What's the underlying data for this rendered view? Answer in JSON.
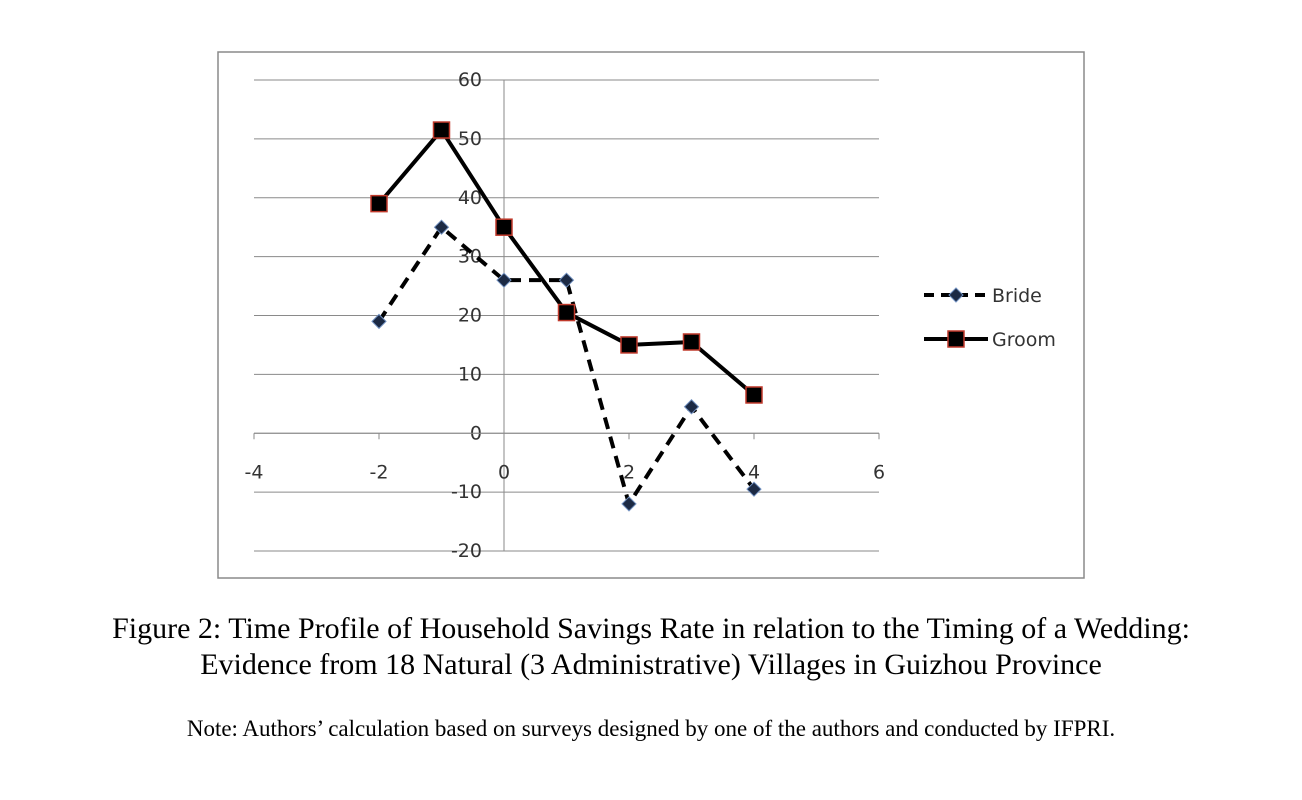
{
  "chart_data": {
    "type": "line",
    "x_ticks": [
      -4,
      -2,
      0,
      2,
      4,
      6
    ],
    "y_ticks": [
      -20,
      -10,
      0,
      10,
      20,
      30,
      40,
      50,
      60
    ],
    "xlim": [
      -4,
      6
    ],
    "ylim": [
      -20,
      60
    ],
    "grid": "horizontal",
    "legend_position": "right",
    "series": [
      {
        "name": "Bride",
        "style": "dashed",
        "marker": "diamond",
        "color": "#000000",
        "marker_fill": "#1c2a44",
        "x": [
          -2,
          -1,
          0,
          1,
          2,
          3,
          4
        ],
        "values": [
          19,
          35,
          26,
          26,
          -12,
          4.5,
          -9.5
        ]
      },
      {
        "name": "Groom",
        "style": "solid",
        "marker": "square",
        "color": "#000000",
        "marker_fill": "#000000",
        "marker_edge": "#c0392b",
        "x": [
          -2,
          -1,
          0,
          1,
          2,
          3,
          4
        ],
        "values": [
          39,
          51.5,
          35,
          20.5,
          15,
          15.5,
          6.5
        ]
      }
    ]
  },
  "caption": {
    "line1": "Figure 2:  Time Profile of Household Savings Rate in relation to the Timing of a Wedding:",
    "line2": "Evidence from 18 Natural (3 Administrative) Villages in Guizhou Province",
    "note": "Note: Authors’ calculation based on surveys designed by one of the authors and conducted by IFPRI."
  }
}
